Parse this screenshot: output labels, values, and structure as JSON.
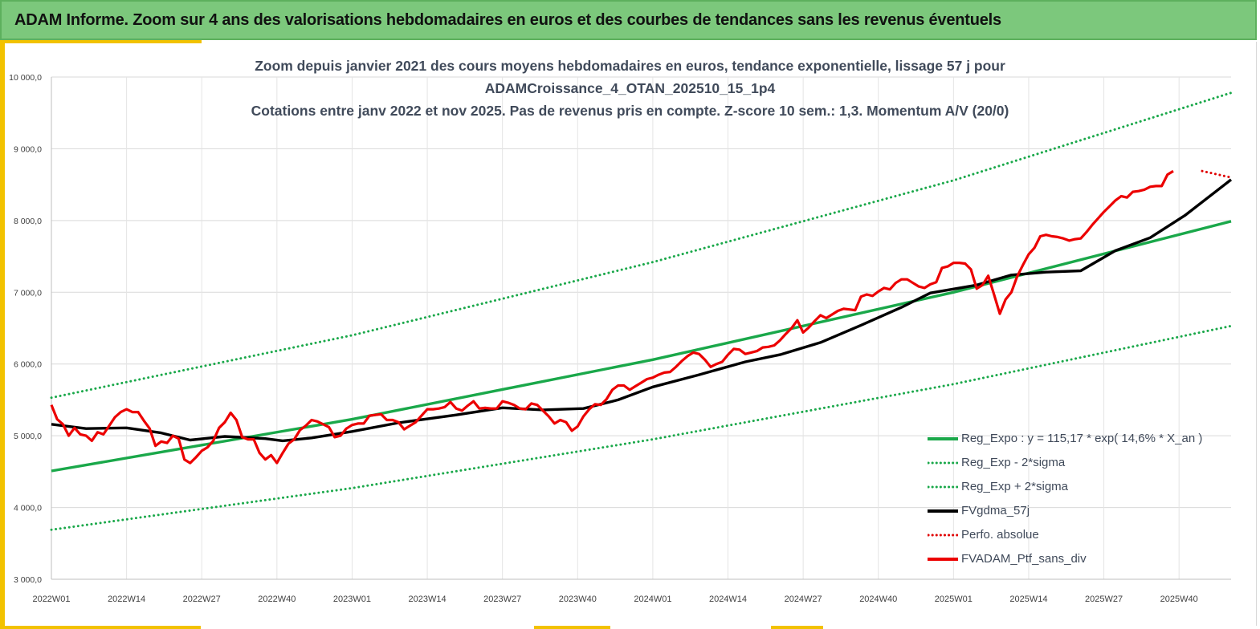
{
  "banner": {
    "title": "ADAM Informe. Zoom sur 4 ans des valorisations hebdomadaires en euros et des courbes de tendances sans les revenus éventuels"
  },
  "chart_data": {
    "type": "line",
    "title_lines": [
      "Zoom depuis janvier 2021 des cours moyens hebdomadaires  en euros, tendance exponentielle, lissage 57 j pour",
      "ADAMCroissance_4_OTAN_202510_15_1p4",
      "Cotations  entre janv 2022 et nov 2025. Pas de revenus pris en compte. Z-score 10 sem.: 1,3. Momentum A/V (20/0)"
    ],
    "xlabel": "",
    "ylabel": "",
    "ylim": [
      3000,
      10000
    ],
    "yticks": [
      "3 000,0",
      "4 000,0",
      "5 000,0",
      "6 000,0",
      "7 000,0",
      "8 000,0",
      "9 000,0",
      "10 000,0"
    ],
    "xticks": [
      "2022W01",
      "2022W14",
      "2022W27",
      "2022W40",
      "2023W01",
      "2023W14",
      "2023W27",
      "2023W40",
      "2024W01",
      "2024W14",
      "2024W27",
      "2024W40",
      "2025W01",
      "2025W14",
      "2025W27",
      "2025W40"
    ],
    "x_week_index_range": [
      0,
      204
    ],
    "grid": true,
    "legend_position": "bottom-right",
    "series": [
      {
        "name": "Reg_Expo : y = 115,17 * exp( 14,6% *  X_an )",
        "color": "#1aa84a",
        "style": "solid",
        "points": [
          [
            0,
            4510
          ],
          [
            52,
            5230
          ],
          [
            104,
            6060
          ],
          [
            156,
            7000
          ],
          [
            204,
            7990
          ]
        ]
      },
      {
        "name": "Reg_Exp - 2*sigma",
        "color": "#1aa84a",
        "style": "dotted",
        "points": [
          [
            0,
            3690
          ],
          [
            52,
            4270
          ],
          [
            104,
            4950
          ],
          [
            156,
            5720
          ],
          [
            204,
            6530
          ]
        ]
      },
      {
        "name": "Reg_Exp + 2*sigma",
        "color": "#1aa84a",
        "style": "dotted",
        "points": [
          [
            0,
            5530
          ],
          [
            52,
            6400
          ],
          [
            104,
            7420
          ],
          [
            156,
            8560
          ],
          [
            204,
            9780
          ]
        ]
      },
      {
        "name": "FVgdma_57j",
        "color": "#000000",
        "style": "solid",
        "points": [
          [
            0,
            5160
          ],
          [
            6,
            5100
          ],
          [
            13,
            5110
          ],
          [
            19,
            5040
          ],
          [
            24,
            4940
          ],
          [
            30,
            4990
          ],
          [
            37,
            4960
          ],
          [
            40,
            4930
          ],
          [
            45,
            4970
          ],
          [
            52,
            5060
          ],
          [
            60,
            5180
          ],
          [
            70,
            5290
          ],
          [
            78,
            5390
          ],
          [
            85,
            5360
          ],
          [
            92,
            5380
          ],
          [
            98,
            5500
          ],
          [
            104,
            5680
          ],
          [
            112,
            5850
          ],
          [
            120,
            6030
          ],
          [
            126,
            6130
          ],
          [
            133,
            6300
          ],
          [
            140,
            6540
          ],
          [
            147,
            6790
          ],
          [
            152,
            6990
          ],
          [
            160,
            7100
          ],
          [
            166,
            7240
          ],
          [
            172,
            7280
          ],
          [
            178,
            7300
          ],
          [
            184,
            7580
          ],
          [
            190,
            7760
          ],
          [
            196,
            8070
          ],
          [
            204,
            8570
          ]
        ]
      },
      {
        "name": "Perfo. absolue",
        "color": "#e00000",
        "style": "dotted",
        "points": [
          [
            199,
            8690
          ],
          [
            204,
            8600
          ]
        ]
      },
      {
        "name": "FVADAM_Ptf_sans_div",
        "color": "#ec0000",
        "style": "solid",
        "points": [
          [
            0,
            5430
          ],
          [
            1,
            5230
          ],
          [
            2,
            5160
          ],
          [
            3,
            5000
          ],
          [
            4,
            5110
          ],
          [
            5,
            5020
          ],
          [
            6,
            5000
          ],
          [
            7,
            4930
          ],
          [
            8,
            5050
          ],
          [
            9,
            5020
          ],
          [
            10,
            5140
          ],
          [
            11,
            5260
          ],
          [
            12,
            5330
          ],
          [
            13,
            5370
          ],
          [
            14,
            5330
          ],
          [
            15,
            5330
          ],
          [
            16,
            5210
          ],
          [
            17,
            5100
          ],
          [
            18,
            4860
          ],
          [
            19,
            4920
          ],
          [
            20,
            4900
          ],
          [
            21,
            5000
          ],
          [
            22,
            4960
          ],
          [
            23,
            4670
          ],
          [
            24,
            4620
          ],
          [
            25,
            4700
          ],
          [
            26,
            4790
          ],
          [
            27,
            4840
          ],
          [
            28,
            4930
          ],
          [
            29,
            5110
          ],
          [
            30,
            5190
          ],
          [
            31,
            5320
          ],
          [
            32,
            5220
          ],
          [
            33,
            4980
          ],
          [
            34,
            4950
          ],
          [
            35,
            4950
          ],
          [
            36,
            4760
          ],
          [
            37,
            4670
          ],
          [
            38,
            4730
          ],
          [
            39,
            4620
          ],
          [
            40,
            4760
          ],
          [
            41,
            4890
          ],
          [
            42,
            4950
          ],
          [
            43,
            5080
          ],
          [
            44,
            5140
          ],
          [
            45,
            5220
          ],
          [
            46,
            5200
          ],
          [
            47,
            5160
          ],
          [
            48,
            5120
          ],
          [
            49,
            4980
          ],
          [
            50,
            5000
          ],
          [
            51,
            5100
          ],
          [
            52,
            5150
          ],
          [
            53,
            5170
          ],
          [
            54,
            5170
          ],
          [
            55,
            5280
          ],
          [
            56,
            5290
          ],
          [
            57,
            5300
          ],
          [
            58,
            5220
          ],
          [
            59,
            5220
          ],
          [
            60,
            5190
          ],
          [
            61,
            5090
          ],
          [
            62,
            5140
          ],
          [
            63,
            5190
          ],
          [
            64,
            5280
          ],
          [
            65,
            5370
          ],
          [
            66,
            5370
          ],
          [
            67,
            5380
          ],
          [
            68,
            5400
          ],
          [
            69,
            5470
          ],
          [
            70,
            5380
          ],
          [
            71,
            5350
          ],
          [
            72,
            5420
          ],
          [
            73,
            5480
          ],
          [
            74,
            5380
          ],
          [
            75,
            5390
          ],
          [
            76,
            5380
          ],
          [
            77,
            5380
          ],
          [
            78,
            5480
          ],
          [
            79,
            5460
          ],
          [
            80,
            5430
          ],
          [
            81,
            5380
          ],
          [
            82,
            5370
          ],
          [
            83,
            5450
          ],
          [
            84,
            5430
          ],
          [
            85,
            5350
          ],
          [
            86,
            5270
          ],
          [
            87,
            5170
          ],
          [
            88,
            5220
          ],
          [
            89,
            5190
          ],
          [
            90,
            5070
          ],
          [
            91,
            5130
          ],
          [
            92,
            5270
          ],
          [
            93,
            5370
          ],
          [
            94,
            5440
          ],
          [
            95,
            5430
          ],
          [
            96,
            5510
          ],
          [
            97,
            5640
          ],
          [
            98,
            5700
          ],
          [
            99,
            5700
          ],
          [
            100,
            5640
          ],
          [
            101,
            5690
          ],
          [
            102,
            5740
          ],
          [
            103,
            5790
          ],
          [
            104,
            5810
          ],
          [
            105,
            5850
          ],
          [
            106,
            5880
          ],
          [
            107,
            5890
          ],
          [
            108,
            5960
          ],
          [
            109,
            6040
          ],
          [
            110,
            6110
          ],
          [
            111,
            6160
          ],
          [
            112,
            6140
          ],
          [
            113,
            6060
          ],
          [
            114,
            5960
          ],
          [
            115,
            6000
          ],
          [
            116,
            6030
          ],
          [
            117,
            6130
          ],
          [
            118,
            6210
          ],
          [
            119,
            6200
          ],
          [
            120,
            6140
          ],
          [
            121,
            6160
          ],
          [
            122,
            6180
          ],
          [
            123,
            6230
          ],
          [
            124,
            6240
          ],
          [
            125,
            6260
          ],
          [
            126,
            6330
          ],
          [
            127,
            6420
          ],
          [
            128,
            6500
          ],
          [
            129,
            6610
          ],
          [
            130,
            6440
          ],
          [
            131,
            6510
          ],
          [
            132,
            6600
          ],
          [
            133,
            6680
          ],
          [
            134,
            6640
          ],
          [
            135,
            6690
          ],
          [
            136,
            6740
          ],
          [
            137,
            6770
          ],
          [
            138,
            6760
          ],
          [
            139,
            6750
          ],
          [
            140,
            6940
          ],
          [
            141,
            6970
          ],
          [
            142,
            6950
          ],
          [
            143,
            7010
          ],
          [
            144,
            7060
          ],
          [
            145,
            7040
          ],
          [
            146,
            7130
          ],
          [
            147,
            7180
          ],
          [
            148,
            7180
          ],
          [
            149,
            7130
          ],
          [
            150,
            7080
          ],
          [
            151,
            7060
          ],
          [
            152,
            7110
          ],
          [
            153,
            7140
          ],
          [
            154,
            7340
          ],
          [
            155,
            7360
          ],
          [
            156,
            7410
          ],
          [
            157,
            7410
          ],
          [
            158,
            7400
          ],
          [
            159,
            7320
          ],
          [
            160,
            7050
          ],
          [
            161,
            7100
          ],
          [
            162,
            7230
          ],
          [
            163,
            6970
          ],
          [
            164,
            6700
          ],
          [
            165,
            6900
          ],
          [
            166,
            7000
          ],
          [
            167,
            7220
          ],
          [
            168,
            7380
          ],
          [
            169,
            7530
          ],
          [
            170,
            7620
          ],
          [
            171,
            7780
          ],
          [
            172,
            7800
          ],
          [
            173,
            7780
          ],
          [
            174,
            7770
          ],
          [
            175,
            7750
          ],
          [
            176,
            7720
          ],
          [
            177,
            7740
          ],
          [
            178,
            7750
          ],
          [
            179,
            7840
          ],
          [
            180,
            7940
          ],
          [
            181,
            8030
          ],
          [
            182,
            8120
          ],
          [
            183,
            8200
          ],
          [
            184,
            8280
          ],
          [
            185,
            8340
          ],
          [
            186,
            8320
          ],
          [
            187,
            8400
          ],
          [
            188,
            8410
          ],
          [
            189,
            8430
          ],
          [
            190,
            8470
          ],
          [
            191,
            8480
          ],
          [
            192,
            8480
          ],
          [
            193,
            8640
          ],
          [
            194,
            8690
          ]
        ]
      }
    ]
  }
}
